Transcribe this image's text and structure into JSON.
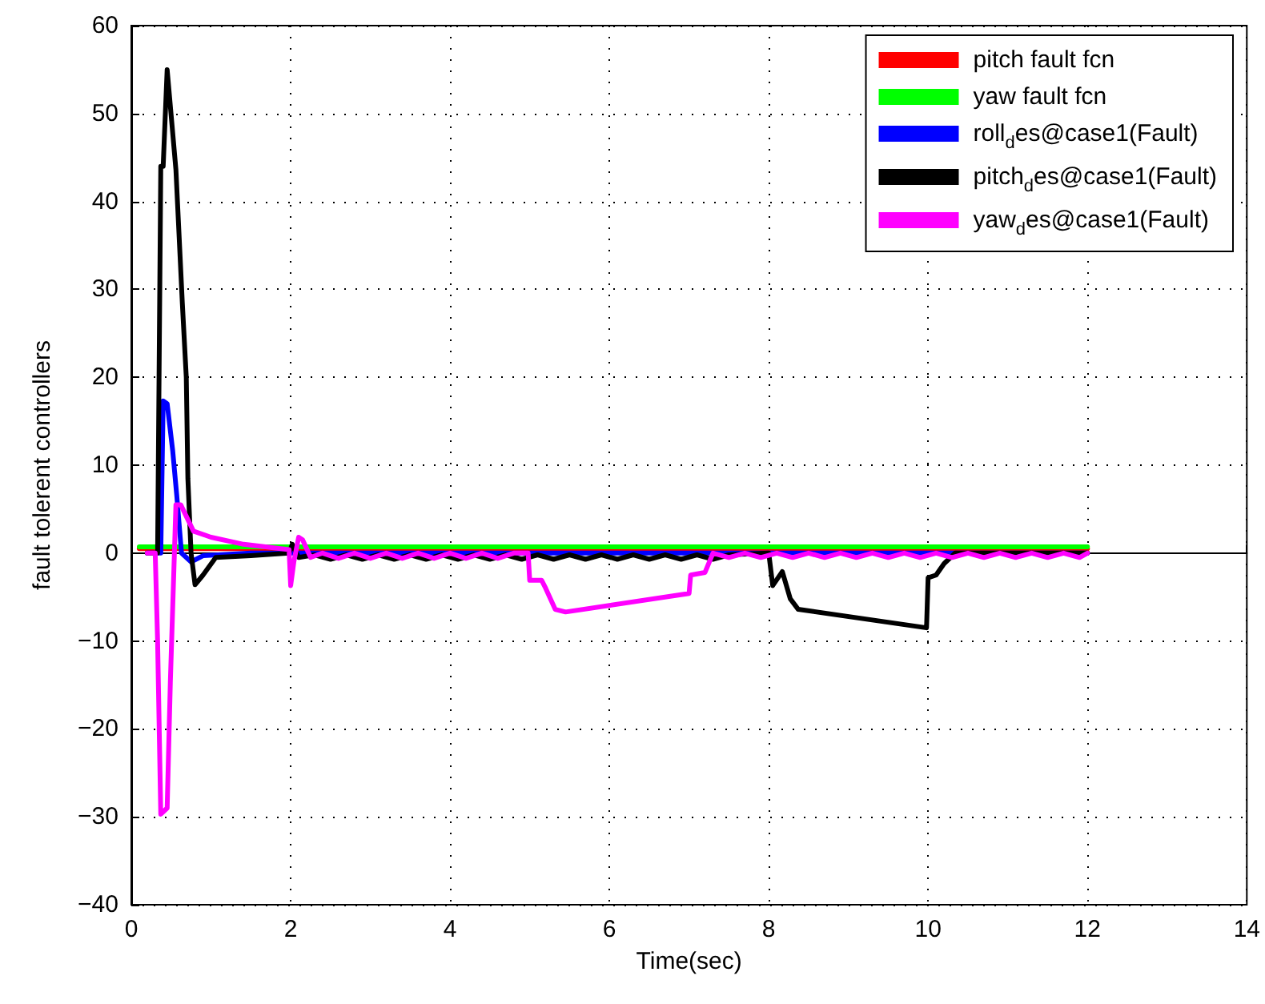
{
  "chart_data": {
    "type": "line",
    "xlabel": "Time(sec)",
    "ylabel": "fault tolerent controllers",
    "xlim": [
      0,
      14
    ],
    "xticks": [
      0,
      2,
      4,
      6,
      8,
      10,
      12,
      14
    ],
    "ylim": [
      -40,
      60
    ],
    "yticks": [
      -40,
      -30,
      -20,
      -10,
      0,
      10,
      20,
      30,
      40,
      50,
      60
    ],
    "grid": true,
    "legend": "top right",
    "marker": "none",
    "line_style": "solid",
    "series": [
      {
        "name": "pitch fault fcn",
        "color": "#ff0000",
        "x": [
          0.1,
          12
        ],
        "values": [
          0.5,
          0.5
        ]
      },
      {
        "name": "yaw fault fcn",
        "color": "#00ff00",
        "x": [
          0.1,
          12
        ],
        "values": [
          0.7,
          0.7
        ]
      },
      {
        "name": "roll$_{d}$es@case1(Fault)",
        "color": "#0000ff",
        "x": [
          0.2,
          0.37,
          0.4,
          0.45,
          0.52,
          0.57,
          0.63,
          0.75,
          0.9,
          1.5,
          12.0
        ],
        "values": [
          0,
          0,
          17.3,
          17,
          11.6,
          6.6,
          0,
          -1,
          -0.3,
          0,
          0
        ]
      },
      {
        "name": "pitch$_{d}$es@case1(Fault)",
        "color": "#000000",
        "x": [
          0.2,
          0.33,
          0.37,
          0.4,
          0.45,
          0.56,
          0.64,
          0.69,
          0.71,
          0.75,
          0.8,
          0.9,
          1.06,
          1.5,
          1.98,
          2.02,
          2.1,
          2.3,
          2.5,
          2.7,
          2.9,
          3.1,
          3.3,
          3.5,
          3.7,
          3.9,
          4.1,
          4.3,
          4.5,
          4.7,
          4.9,
          5.1,
          5.3,
          5.5,
          5.7,
          5.9,
          6.1,
          6.3,
          6.5,
          6.7,
          6.9,
          7.1,
          7.3,
          7.5,
          8.0,
          8.05,
          8.17,
          8.27,
          8.37,
          9.98,
          10.0,
          10.1,
          10.2,
          10.34,
          10.6,
          11.0,
          11.5,
          12.0
        ],
        "values": [
          0,
          0,
          44,
          44,
          55,
          43.6,
          28.5,
          20,
          8.5,
          0,
          -3.6,
          -2.5,
          -0.5,
          -0.3,
          0,
          1,
          -0.5,
          -0.2,
          -0.7,
          -0.2,
          -0.7,
          -0.2,
          -0.7,
          -0.2,
          -0.7,
          -0.2,
          -0.7,
          -0.2,
          -0.7,
          -0.2,
          -0.7,
          -0.2,
          -0.7,
          -0.2,
          -0.7,
          -0.2,
          -0.7,
          -0.2,
          -0.7,
          -0.2,
          -0.7,
          -0.2,
          -0.7,
          -0.2,
          0,
          -3.7,
          -2.1,
          -5.2,
          -6.4,
          -8.5,
          -2.8,
          -2.5,
          -1.2,
          0,
          0,
          0,
          0,
          0
        ]
      },
      {
        "name": "yaw$_{d}$es@case1(Fault)",
        "color": "#ff00ff",
        "x": [
          0.2,
          0.3,
          0.33,
          0.37,
          0.45,
          0.49,
          0.56,
          0.62,
          0.7,
          0.78,
          1.0,
          1.41,
          1.98,
          2.0,
          2.04,
          2.1,
          2.15,
          2.25,
          2.4,
          2.6,
          2.8,
          3.0,
          3.2,
          3.4,
          3.6,
          3.8,
          4.0,
          4.2,
          4.4,
          4.6,
          4.8,
          4.98,
          5.0,
          5.15,
          5.2,
          5.32,
          5.45,
          7.0,
          7.02,
          7.2,
          7.3,
          7.5,
          7.7,
          7.9,
          8.1,
          8.3,
          8.5,
          8.7,
          8.9,
          9.1,
          9.3,
          9.5,
          9.7,
          9.9,
          10.1,
          10.3,
          10.5,
          10.7,
          10.9,
          11.1,
          11.3,
          11.5,
          11.7,
          11.9,
          12.0
        ],
        "values": [
          0,
          0,
          -10,
          -29.7,
          -29,
          -14.7,
          5.5,
          5.5,
          4,
          2.5,
          1.8,
          1.0,
          0.4,
          -3.7,
          -1,
          1.8,
          1.5,
          -0.5,
          0,
          -0.6,
          0,
          -0.6,
          0,
          -0.6,
          0,
          -0.6,
          0,
          -0.6,
          0,
          -0.6,
          0,
          0,
          -3.1,
          -3.1,
          -4,
          -6.4,
          -6.7,
          -4.6,
          -2.5,
          -2.2,
          0,
          -0.5,
          0,
          -0.5,
          0,
          -0.5,
          0,
          -0.5,
          0,
          -0.5,
          0,
          -0.5,
          0,
          -0.5,
          0,
          -0.5,
          0,
          -0.5,
          0,
          -0.5,
          0,
          -0.5,
          0,
          -0.5,
          0
        ]
      }
    ]
  }
}
